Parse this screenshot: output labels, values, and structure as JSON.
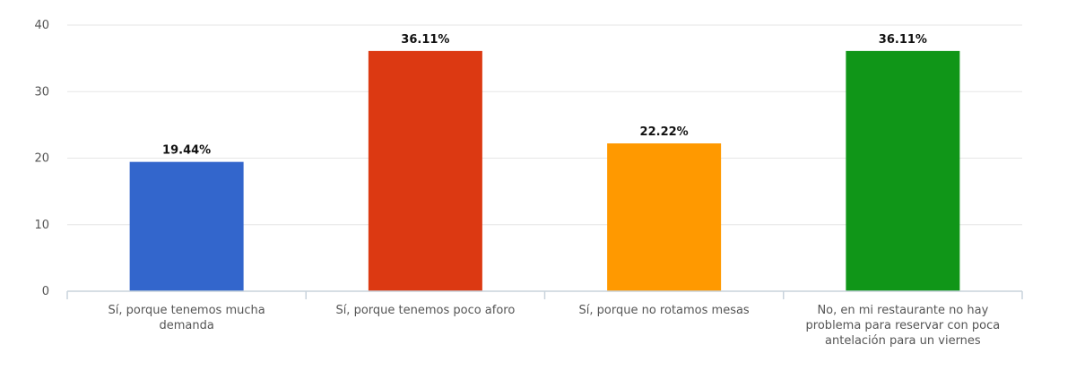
{
  "chart_data": {
    "type": "bar",
    "categories": [
      [
        "Sí, porque tenemos mucha",
        "demanda"
      ],
      [
        "Sí, porque tenemos poco aforo"
      ],
      [
        "Sí, porque no rotamos mesas"
      ],
      [
        "No, en mi restaurante no hay",
        "problema para reservar con poca",
        "antelación para un viernes"
      ]
    ],
    "values": [
      19.44,
      36.11,
      22.22,
      36.11
    ],
    "data_labels": [
      "19.44%",
      "36.11%",
      "22.22%",
      "36.11%"
    ],
    "colors": [
      "#3366cc",
      "#dc3912",
      "#ff9900",
      "#109618"
    ],
    "ylim": [
      0,
      40
    ],
    "yticks": [
      0,
      10,
      20,
      30,
      40
    ],
    "grid": true,
    "title": "",
    "xlabel": "",
    "ylabel": ""
  }
}
